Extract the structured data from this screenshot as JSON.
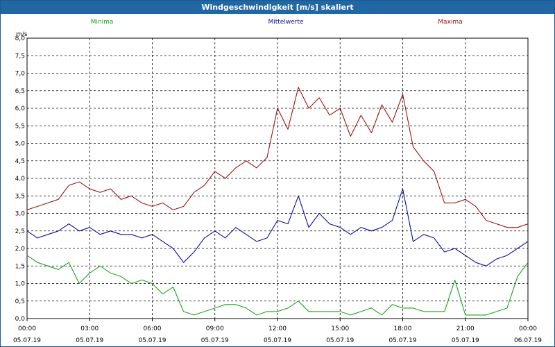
{
  "window": {
    "title": "Windgeschwindigkeit [m/s] skaliert"
  },
  "colors": {
    "titlebar": "#2067a4",
    "minima": "#1aa31a",
    "mittelwerte": "#0b0ba4",
    "maxima": "#a01010",
    "grid": "#000000"
  },
  "chart_data": {
    "type": "line",
    "title": "Windgeschwindigkeit [m/s] skaliert",
    "ylabel": "m/s",
    "ylim": [
      0,
      8.0
    ],
    "yticks": [
      "0,0",
      "0,5",
      "1,0",
      "1,5",
      "2,0",
      "2,5",
      "3,0",
      "3,5",
      "4,0",
      "4,5",
      "5,0",
      "5,5",
      "6,0",
      "6,5",
      "7,0",
      "7,5",
      "8,0"
    ],
    "xlim_hours": [
      0,
      24
    ],
    "xticks": [
      {
        "time": "00:00",
        "date": "05.07.19"
      },
      {
        "time": "03:00",
        "date": "05.07.19"
      },
      {
        "time": "06:00",
        "date": "05.07.19"
      },
      {
        "time": "09:00",
        "date": "05.07.19"
      },
      {
        "time": "12:00",
        "date": "05.07.19"
      },
      {
        "time": "15:00",
        "date": "05.07.19"
      },
      {
        "time": "18:00",
        "date": "05.07.19"
      },
      {
        "time": "21:00",
        "date": "05.07.19"
      },
      {
        "time": "00:00",
        "date": "06.07.19"
      }
    ],
    "grid": true,
    "legend_placement": "top",
    "x_hours": [
      0,
      0.5,
      1,
      1.5,
      2,
      2.5,
      3,
      3.5,
      4,
      4.5,
      5,
      5.5,
      6,
      6.5,
      7,
      7.5,
      8,
      8.5,
      9,
      9.5,
      10,
      10.5,
      11,
      11.5,
      12,
      12.5,
      13,
      13.5,
      14,
      14.5,
      15,
      15.5,
      16,
      16.5,
      17,
      17.5,
      18,
      18.5,
      19,
      19.5,
      20,
      20.5,
      21,
      21.5,
      22,
      22.5,
      23,
      23.5,
      24
    ],
    "series": [
      {
        "name": "Minima",
        "values": [
          1.8,
          1.6,
          1.5,
          1.4,
          1.6,
          1.0,
          1.3,
          1.5,
          1.3,
          1.2,
          1.0,
          1.1,
          1.0,
          0.7,
          0.9,
          0.2,
          0.1,
          0.2,
          0.3,
          0.4,
          0.4,
          0.3,
          0.1,
          0.2,
          0.2,
          0.3,
          0.5,
          0.2,
          0.2,
          0.2,
          0.2,
          0.1,
          0.2,
          0.3,
          0.1,
          0.4,
          0.3,
          0.3,
          0.2,
          0.2,
          0.2,
          1.1,
          0.1,
          0.1,
          0.1,
          0.2,
          0.3,
          1.2,
          1.6
        ]
      },
      {
        "name": "Mittelwerte",
        "values": [
          2.5,
          2.3,
          2.4,
          2.5,
          2.7,
          2.5,
          2.6,
          2.4,
          2.5,
          2.4,
          2.4,
          2.3,
          2.4,
          2.2,
          2.0,
          1.6,
          1.9,
          2.3,
          2.5,
          2.3,
          2.6,
          2.4,
          2.2,
          2.3,
          2.8,
          2.7,
          3.5,
          2.6,
          3.0,
          2.7,
          2.6,
          2.4,
          2.6,
          2.5,
          2.6,
          2.8,
          3.7,
          2.2,
          2.4,
          2.3,
          1.9,
          2.0,
          1.8,
          1.6,
          1.5,
          1.7,
          1.8,
          2.0,
          2.2
        ]
      },
      {
        "name": "Maxima",
        "values": [
          3.1,
          3.2,
          3.3,
          3.4,
          3.8,
          3.9,
          3.7,
          3.6,
          3.7,
          3.4,
          3.5,
          3.3,
          3.2,
          3.3,
          3.1,
          3.2,
          3.6,
          3.8,
          4.2,
          4.0,
          4.3,
          4.5,
          4.3,
          4.6,
          6.0,
          5.4,
          6.6,
          6.0,
          6.3,
          5.8,
          6.0,
          5.2,
          5.8,
          5.3,
          6.1,
          5.6,
          6.4,
          4.9,
          4.5,
          4.2,
          3.3,
          3.3,
          3.4,
          3.2,
          2.8,
          2.7,
          2.6,
          2.6,
          2.7
        ]
      }
    ]
  }
}
